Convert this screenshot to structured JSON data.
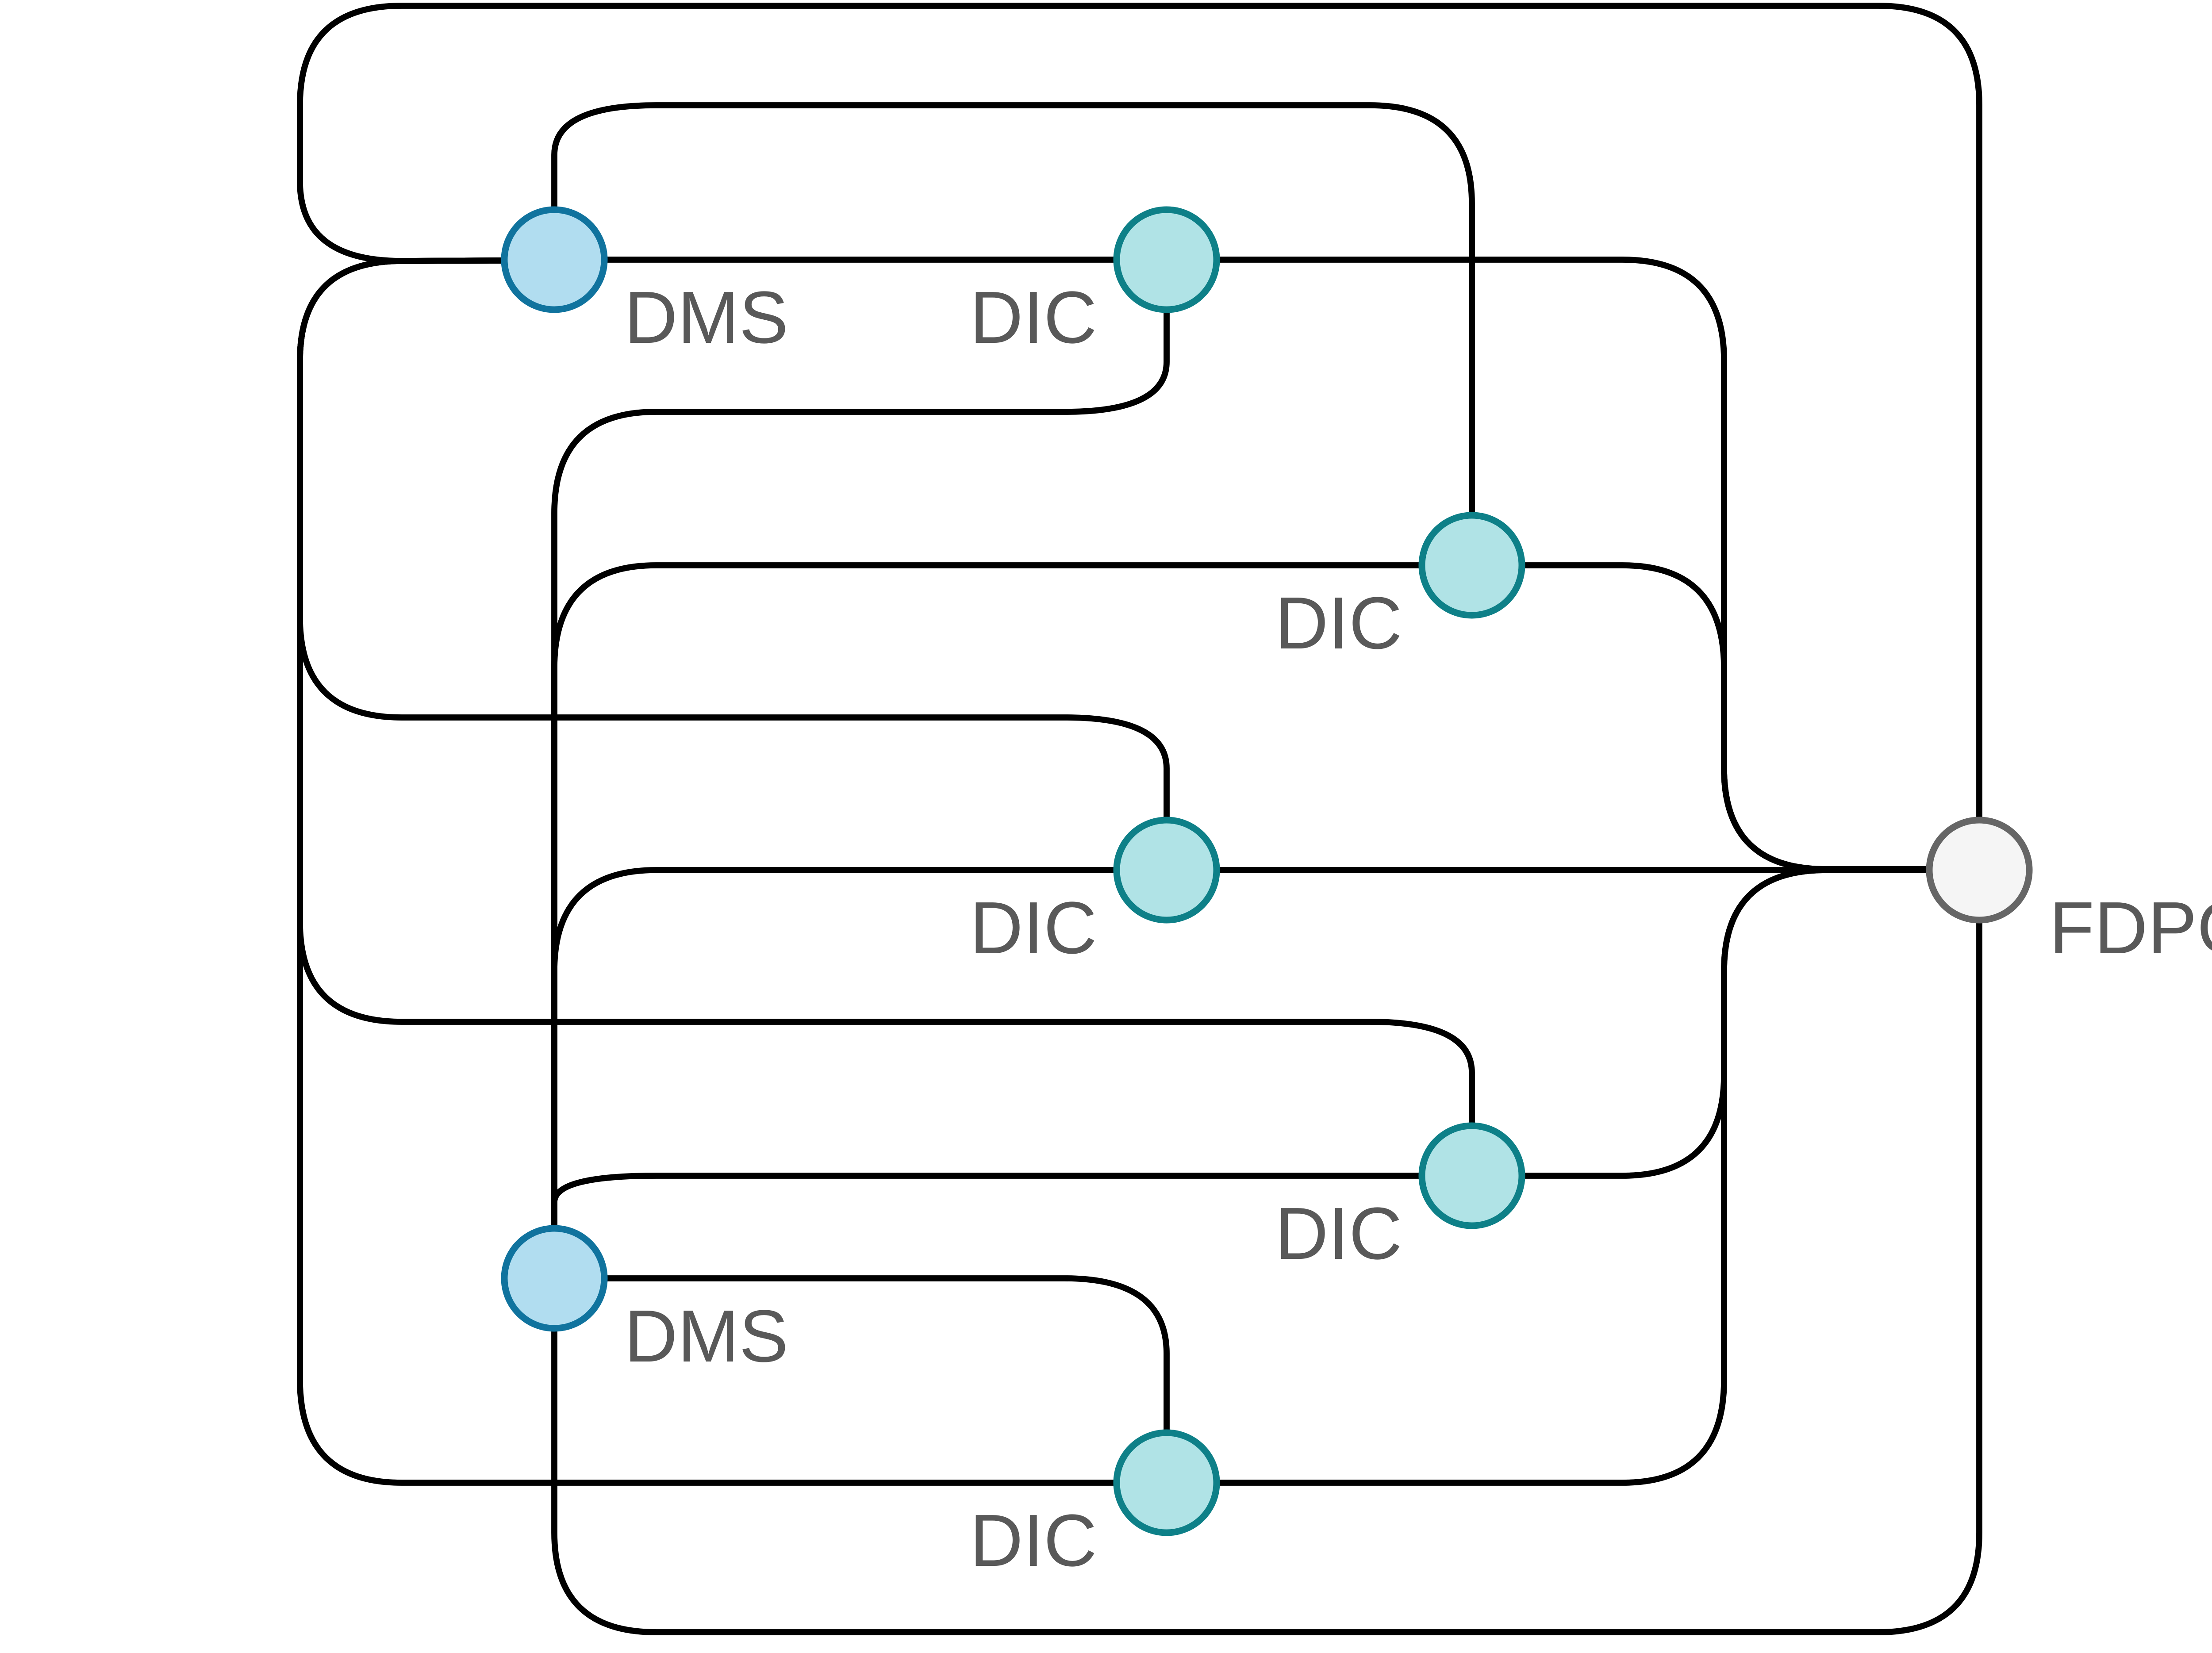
{
  "colors": {
    "edge": "#000000",
    "label": "#595959",
    "dms_fill": "#b1ddf0",
    "dms_stroke": "#10739e",
    "dic_fill": "#b0e3e6",
    "dic_stroke": "#0e8088",
    "fdpg_fill": "#f5f5f5",
    "fdpg_stroke": "#666666"
  },
  "nodes": [
    {
      "id": "dms1",
      "type": "DMS",
      "label": "DMS"
    },
    {
      "id": "dic1",
      "type": "DIC",
      "label": "DIC"
    },
    {
      "id": "dic2",
      "type": "DIC",
      "label": "DIC"
    },
    {
      "id": "dic3",
      "type": "DIC",
      "label": "DIC"
    },
    {
      "id": "dic4",
      "type": "DIC",
      "label": "DIC"
    },
    {
      "id": "dms2",
      "type": "DMS",
      "label": "DMS"
    },
    {
      "id": "dic5",
      "type": "DIC",
      "label": "DIC"
    },
    {
      "id": "fdpg",
      "type": "FDPG",
      "label": "FDPG"
    }
  ],
  "edges": [
    {
      "from": "dms1",
      "to": "fdpg"
    },
    {
      "from": "dms1",
      "to": "dic1"
    },
    {
      "from": "dms1",
      "to": "dic2"
    },
    {
      "from": "dms1",
      "to": "dic3"
    },
    {
      "from": "dms1",
      "to": "dic4"
    },
    {
      "from": "dms1",
      "to": "dic5"
    },
    {
      "from": "dic1",
      "to": "fdpg"
    },
    {
      "from": "dic1",
      "to": "dms2"
    },
    {
      "from": "dic2",
      "to": "fdpg"
    },
    {
      "from": "dic2",
      "to": "dms2"
    },
    {
      "from": "dic3",
      "to": "fdpg"
    },
    {
      "from": "dic3",
      "to": "dms2"
    },
    {
      "from": "dic4",
      "to": "fdpg"
    },
    {
      "from": "dic4",
      "to": "dms2"
    },
    {
      "from": "dms2",
      "to": "dic5"
    },
    {
      "from": "dms2",
      "to": "fdpg"
    },
    {
      "from": "dic5",
      "to": "fdpg"
    }
  ]
}
